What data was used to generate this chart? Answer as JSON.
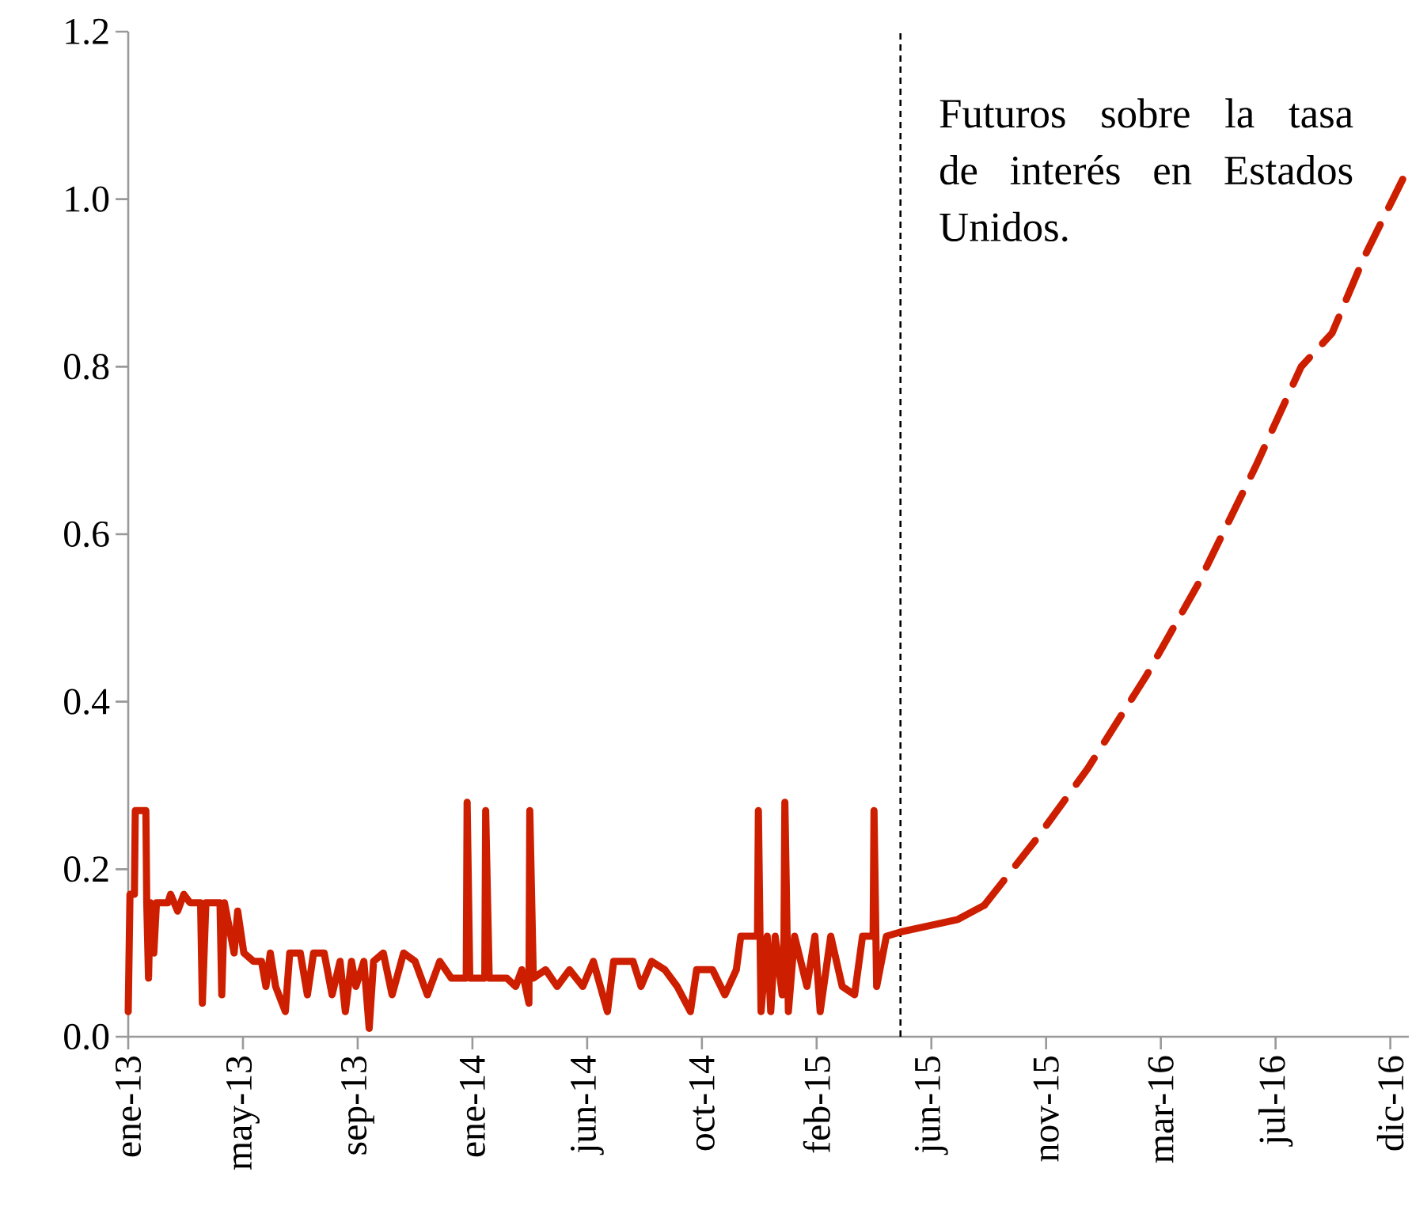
{
  "chart_data": {
    "type": "line",
    "annotations": [
      "Futuros sobre la tasa de interés en Estados Unidos."
    ],
    "xlim": [
      "2013-01-01",
      "2016-12-22"
    ],
    "xticks": [
      {
        "value": "2013-01-01",
        "label": "ene-13"
      },
      {
        "value": "2013-05-11",
        "label": "may-13"
      },
      {
        "value": "2013-09-18",
        "label": "sep-13"
      },
      {
        "value": "2014-01-26",
        "label": "ene-14"
      },
      {
        "value": "2014-06-05",
        "label": "jun-14"
      },
      {
        "value": "2014-10-13",
        "label": "oct-14"
      },
      {
        "value": "2015-02-20",
        "label": "feb-15"
      },
      {
        "value": "2015-06-30",
        "label": "jun-15"
      },
      {
        "value": "2015-11-07",
        "label": "nov-15"
      },
      {
        "value": "2016-03-16",
        "label": "mar-16"
      },
      {
        "value": "2016-07-24",
        "label": "jul-16"
      },
      {
        "value": "2016-12-01",
        "label": "dic-16"
      }
    ],
    "ylim": [
      0,
      1.2
    ],
    "yticks": [
      {
        "value": 0,
        "label": "0.0"
      },
      {
        "value": 0.2,
        "label": "0.2"
      },
      {
        "value": 0.4,
        "label": "0.4"
      },
      {
        "value": 0.6,
        "label": "0.6"
      },
      {
        "value": 0.8,
        "label": "0.8"
      },
      {
        "value": 1.0,
        "label": "1.0"
      },
      {
        "value": 1.2,
        "label": "1.2"
      }
    ],
    "ref_lines": [
      {
        "axis": "x",
        "value": "2015-05-26",
        "color": "#000000",
        "line_style": "dashed"
      }
    ],
    "series": [
      {
        "color": "#cd1f00",
        "line_style": "solid",
        "x": [
          "2013-01-01",
          "2013-01-03",
          "2013-01-08",
          "2013-01-09",
          "2013-01-21",
          "2013-01-22",
          "2013-01-24",
          "2013-01-26",
          "2013-01-30",
          "2013-02-02",
          "2013-02-15",
          "2013-02-18",
          "2013-02-26",
          "2013-03-05",
          "2013-03-12",
          "2013-03-24",
          "2013-03-26",
          "2013-03-30",
          "2013-04-15",
          "2013-04-17",
          "2013-04-20",
          "2013-05-01",
          "2013-05-05",
          "2013-05-12",
          "2013-05-23",
          "2013-06-01",
          "2013-06-06",
          "2013-06-11",
          "2013-06-17",
          "2013-06-28",
          "2013-07-03",
          "2013-07-15",
          "2013-07-23",
          "2013-07-30",
          "2013-08-11",
          "2013-08-20",
          "2013-08-29",
          "2013-09-04",
          "2013-09-11",
          "2013-09-16",
          "2013-09-25",
          "2013-10-01",
          "2013-10-06",
          "2013-10-17",
          "2013-10-27",
          "2013-11-09",
          "2013-11-22",
          "2013-12-06",
          "2013-12-20",
          "2014-01-02",
          "2014-01-11",
          "2014-01-19",
          "2014-01-20",
          "2014-01-23",
          "2014-02-03",
          "2014-02-09",
          "2014-02-10",
          "2014-02-14",
          "2014-03-06",
          "2014-03-16",
          "2014-03-23",
          "2014-03-31",
          "2014-04-01",
          "2014-04-05",
          "2014-04-19",
          "2014-05-02",
          "2014-05-16",
          "2014-05-31",
          "2014-06-12",
          "2014-06-28",
          "2014-07-05",
          "2014-07-27",
          "2014-08-05",
          "2014-08-17",
          "2014-09-01",
          "2014-09-15",
          "2014-09-30",
          "2014-10-07",
          "2014-10-25",
          "2014-11-08",
          "2014-11-21",
          "2014-11-26",
          "2014-12-07",
          "2014-12-15",
          "2014-12-16",
          "2014-12-19",
          "2014-12-26",
          "2014-12-30",
          "2015-01-04",
          "2015-01-12",
          "2015-01-14",
          "2015-01-15",
          "2015-01-19",
          "2015-01-26",
          "2015-02-09",
          "2015-02-18",
          "2015-02-24",
          "2015-03-08",
          "2015-03-21",
          "2015-04-04",
          "2015-04-13",
          "2015-04-25",
          "2015-04-26",
          "2015-04-29",
          "2015-05-10",
          "2015-05-26",
          "2015-07-30",
          "2015-08-29"
        ],
        "values": [
          0.03,
          0.17,
          0.17,
          0.27,
          0.27,
          0.16,
          0.07,
          0.16,
          0.1,
          0.16,
          0.16,
          0.17,
          0.15,
          0.17,
          0.16,
          0.16,
          0.04,
          0.16,
          0.16,
          0.05,
          0.16,
          0.1,
          0.15,
          0.1,
          0.09,
          0.09,
          0.06,
          0.1,
          0.06,
          0.03,
          0.1,
          0.1,
          0.05,
          0.1,
          0.1,
          0.05,
          0.09,
          0.03,
          0.09,
          0.06,
          0.09,
          0.01,
          0.09,
          0.1,
          0.05,
          0.1,
          0.09,
          0.05,
          0.09,
          0.07,
          0.07,
          0.07,
          0.28,
          0.07,
          0.07,
          0.07,
          0.27,
          0.07,
          0.07,
          0.06,
          0.08,
          0.04,
          0.27,
          0.07,
          0.08,
          0.06,
          0.08,
          0.06,
          0.09,
          0.03,
          0.09,
          0.09,
          0.06,
          0.09,
          0.08,
          0.06,
          0.03,
          0.08,
          0.08,
          0.05,
          0.08,
          0.12,
          0.12,
          0.12,
          0.27,
          0.03,
          0.12,
          0.03,
          0.12,
          0.05,
          0.12,
          0.28,
          0.03,
          0.12,
          0.06,
          0.12,
          0.03,
          0.12,
          0.06,
          0.05,
          0.12,
          0.12,
          0.27,
          0.06,
          0.12,
          0.125,
          0.14,
          0.157
        ]
      },
      {
        "color": "#cd1f00",
        "line_style": "dashed",
        "x": [
          "2015-08-29",
          "2015-10-27",
          "2015-12-24",
          "2016-02-28",
          "2016-04-27",
          "2016-07-01",
          "2016-08-22",
          "2016-09-26",
          "2016-11-01",
          "2016-12-18"
        ],
        "values": [
          0.157,
          0.236,
          0.32,
          0.43,
          0.54,
          0.68,
          0.8,
          0.84,
          0.93,
          1.03
        ]
      }
    ]
  }
}
